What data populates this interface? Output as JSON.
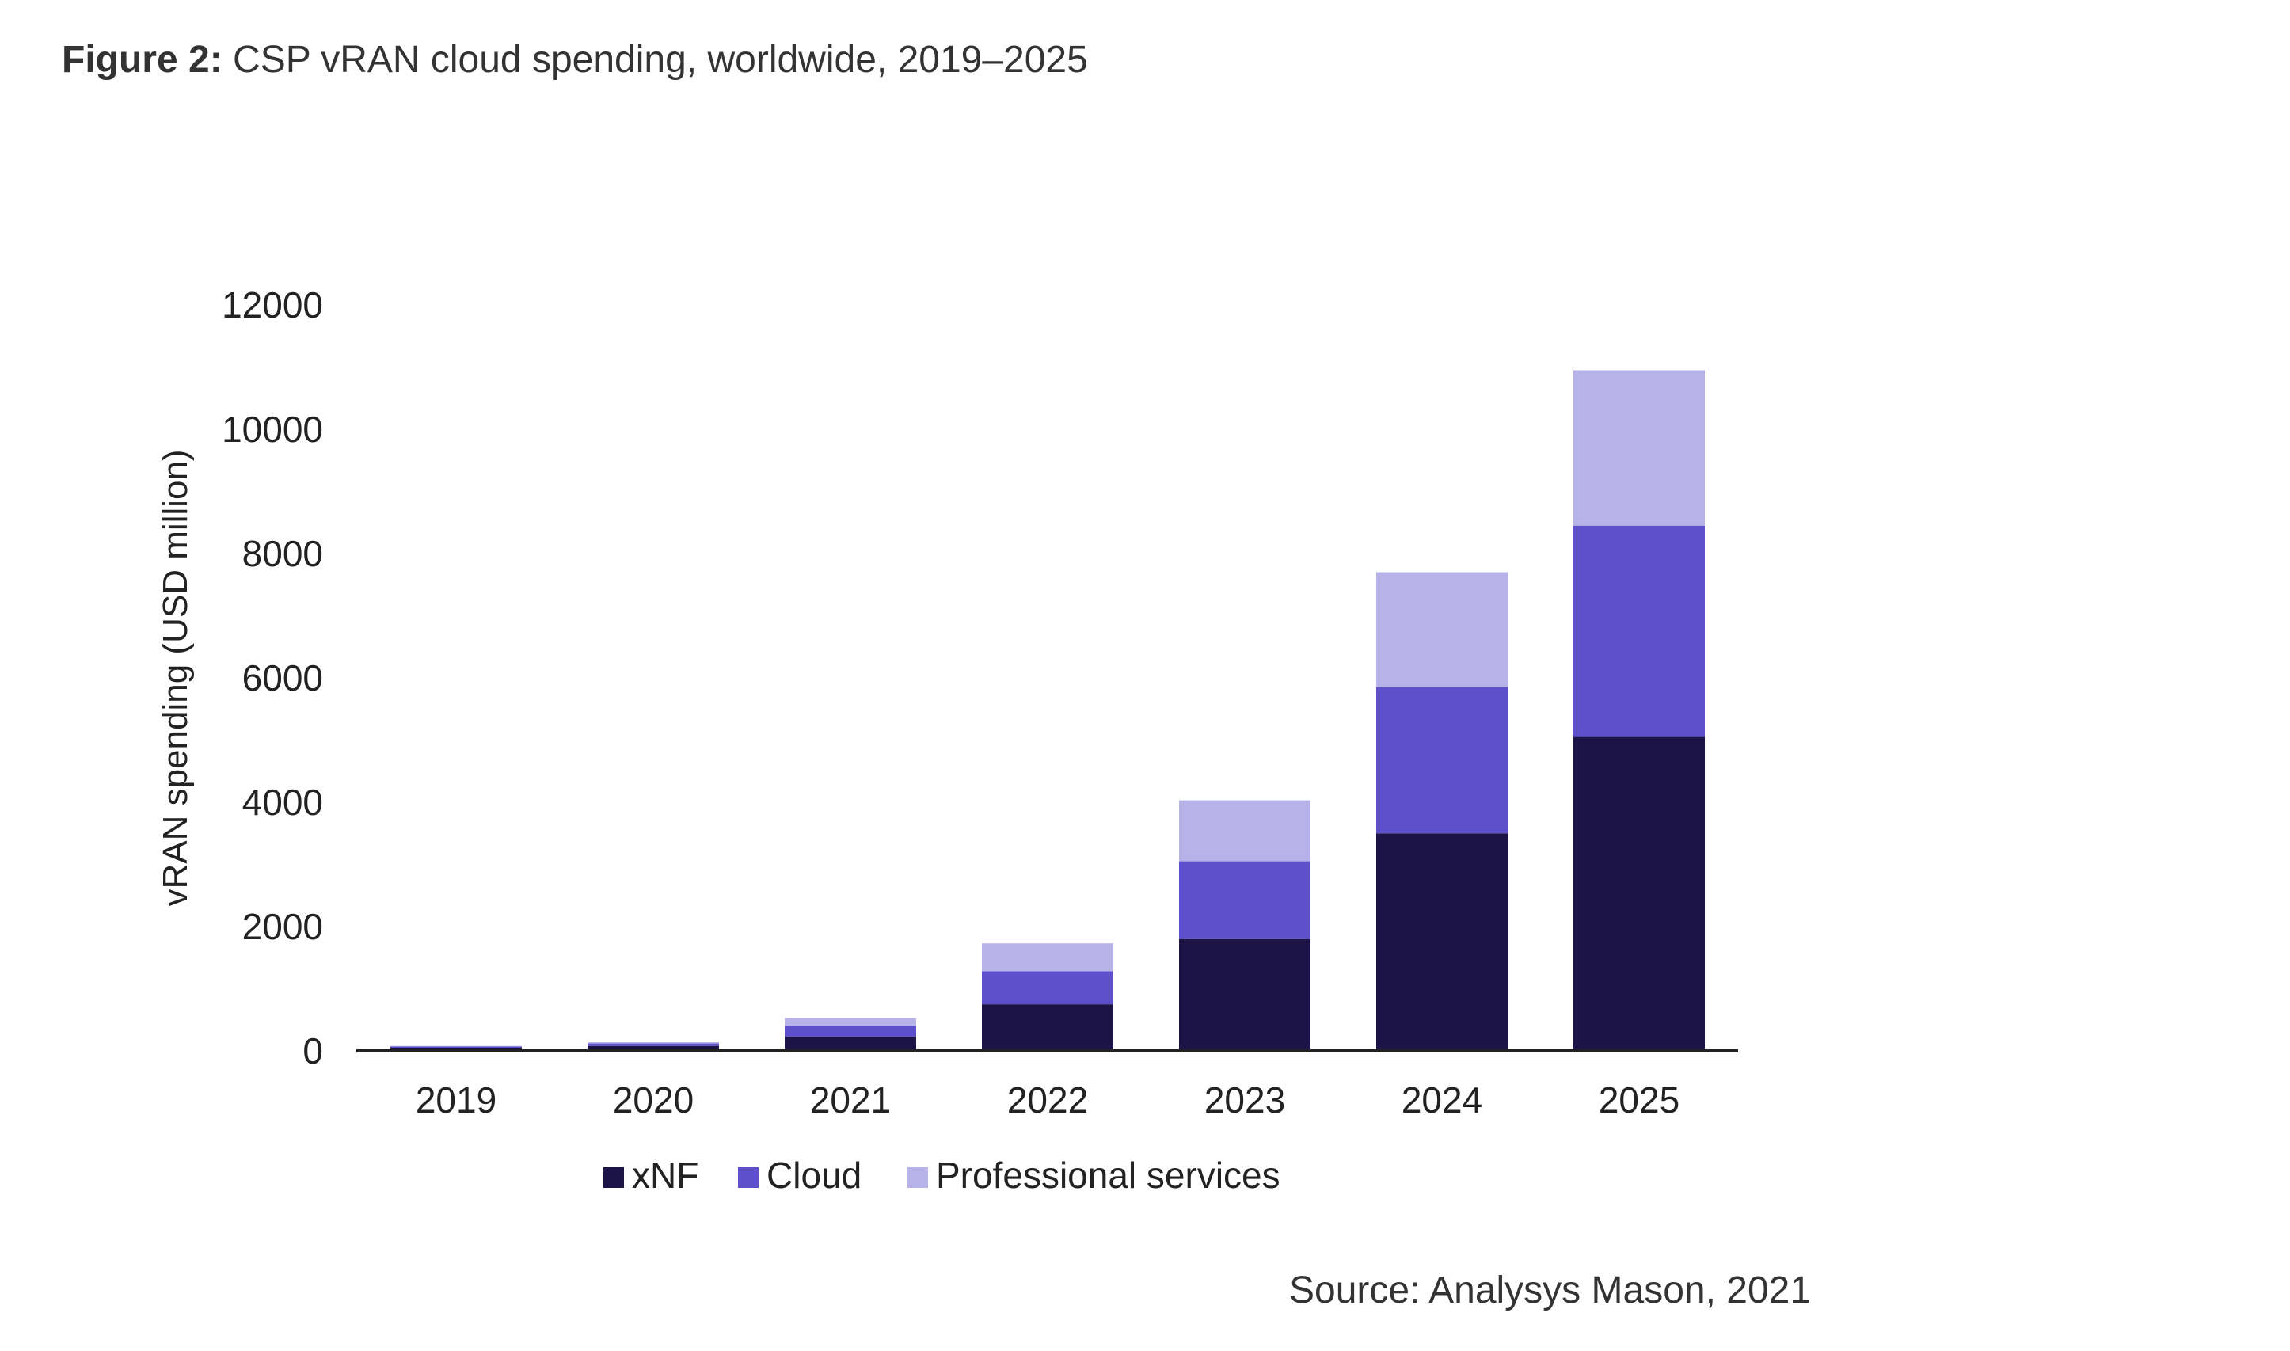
{
  "figure": {
    "label": "Figure 2:",
    "title": "CSP vRAN cloud spending, worldwide, 2019–2025"
  },
  "source": "Source: Analysys Mason, 2021",
  "chart_data": {
    "type": "bar",
    "stacked": true,
    "title": "CSP vRAN cloud spending, worldwide, 2019–2025",
    "xlabel": "",
    "ylabel": "vRAN spending (USD million)",
    "ylim": [
      0,
      12000
    ],
    "yticks": [
      0,
      2000,
      4000,
      6000,
      8000,
      10000,
      12000
    ],
    "grid": false,
    "legend_position": "bottom",
    "categories": [
      "2019",
      "2020",
      "2021",
      "2022",
      "2023",
      "2024",
      "2025"
    ],
    "series": [
      {
        "name": "xNF",
        "color": "#1c1446",
        "values": [
          50,
          80,
          230,
          750,
          1800,
          3500,
          5050
        ]
      },
      {
        "name": "Cloud",
        "color": "#5e50cb",
        "values": [
          20,
          40,
          170,
          530,
          1250,
          2350,
          3400
        ]
      },
      {
        "name": "Professional services",
        "color": "#b7b3e8",
        "values": [
          10,
          20,
          130,
          450,
          980,
          1850,
          2500
        ]
      }
    ]
  }
}
